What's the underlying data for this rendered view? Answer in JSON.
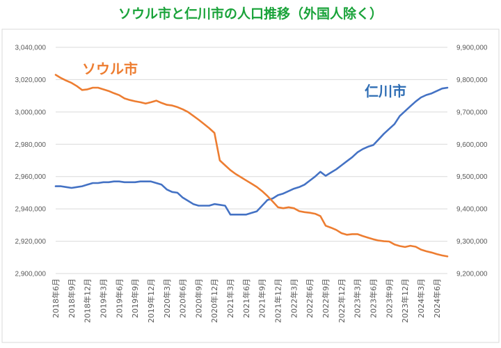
{
  "chart_data": {
    "type": "line",
    "title": "ソウル市と仁川市の人口推移（外国人除く）",
    "x": [
      "2018年6月",
      "2018年7月",
      "2018年8月",
      "2018年9月",
      "2018年10月",
      "2018年11月",
      "2018年12月",
      "2019年1月",
      "2019年2月",
      "2019年3月",
      "2019年4月",
      "2019年5月",
      "2019年6月",
      "2019年7月",
      "2019年8月",
      "2019年9月",
      "2019年10月",
      "2019年11月",
      "2019年12月",
      "2020年1月",
      "2020年2月",
      "2020年3月",
      "2020年4月",
      "2020年5月",
      "2020年6月",
      "2020年7月",
      "2020年8月",
      "2020年9月",
      "2020年10月",
      "2020年11月",
      "2020年12月",
      "2021年1月",
      "2021年2月",
      "2021年3月",
      "2021年4月",
      "2021年5月",
      "2021年6月",
      "2021年7月",
      "2021年8月",
      "2021年9月",
      "2021年10月",
      "2021年11月",
      "2021年12月",
      "2022年1月",
      "2022年2月",
      "2022年3月",
      "2022年4月",
      "2022年5月",
      "2022年6月",
      "2022年7月",
      "2022年8月",
      "2022年9月",
      "2022年10月",
      "2022年11月",
      "2022年12月",
      "2023年1月",
      "2023年2月",
      "2023年3月",
      "2023年4月",
      "2023年5月",
      "2023年6月",
      "2023年7月",
      "2023年8月",
      "2023年9月",
      "2023年10月",
      "2023年11月",
      "2023年12月",
      "2024年1月",
      "2024年2月",
      "2024年3月",
      "2024年4月",
      "2024年5月",
      "2024年6月",
      "2024年7月",
      "2024年8月"
    ],
    "x_tick_labels": [
      "2018年6月",
      "2018年9月",
      "2018年12月",
      "2019年3月",
      "2019年6月",
      "2019年9月",
      "2019年12月",
      "2020年3月",
      "2020年6月",
      "2020年9月",
      "2020年12月",
      "2021年3月",
      "2021年6月",
      "2021年9月",
      "2021年12月",
      "2022年3月",
      "2022年6月",
      "2022年9月",
      "2022年12月",
      "2023年3月",
      "2023年6月",
      "2023年9月",
      "2023年12月",
      "2024年3月",
      "2024年6月"
    ],
    "y_left": {
      "ylim": [
        2900000,
        3040000
      ],
      "ticks": [
        "2,900,000",
        "2,920,000",
        "2,940,000",
        "2,960,000",
        "2,980,000",
        "3,000,000",
        "3,020,000",
        "3,040,000"
      ]
    },
    "y_right": {
      "ylim": [
        9200000,
        9900000
      ],
      "ticks": [
        "9,200,000",
        "9,300,000",
        "9,400,000",
        "9,500,000",
        "9,600,000",
        "9,700,000",
        "9,800,000",
        "9,900,000"
      ]
    },
    "grid": true,
    "series": [
      {
        "name": "仁川市",
        "axis": "left",
        "color": "#4472c4",
        "label_color": "#2e6db4",
        "values": [
          2954000,
          2954000,
          2953500,
          2953000,
          2953500,
          2954000,
          2955000,
          2956000,
          2956000,
          2956500,
          2956500,
          2957000,
          2957000,
          2956500,
          2956500,
          2956500,
          2957000,
          2957000,
          2957000,
          2956000,
          2955000,
          2952000,
          2950500,
          2950000,
          2947000,
          2945000,
          2943000,
          2942000,
          2942000,
          2942000,
          2943000,
          2942500,
          2942000,
          2936500,
          2936500,
          2936500,
          2936500,
          2937500,
          2938500,
          2942000,
          2945500,
          2946500,
          2948500,
          2949500,
          2951000,
          2952500,
          2953500,
          2955000,
          2957500,
          2960000,
          2963000,
          2960500,
          2962500,
          2964500,
          2967000,
          2969500,
          2972000,
          2975000,
          2977000,
          2978500,
          2979500,
          2983000,
          2986500,
          2989500,
          2992500,
          2997500,
          3000500,
          3003500,
          3006500,
          3009000,
          3010500,
          3011500,
          3013000,
          3014500,
          3015000
        ]
      },
      {
        "name": "ソウル市",
        "axis": "right",
        "color": "#ed7d31",
        "label_color": "#ed7d31",
        "values": [
          9815000,
          9805000,
          9797000,
          9790000,
          9780000,
          9768000,
          9770000,
          9775000,
          9775000,
          9770000,
          9765000,
          9758000,
          9752000,
          9742000,
          9737000,
          9733000,
          9730000,
          9726000,
          9730000,
          9735000,
          9728000,
          9722000,
          9720000,
          9715000,
          9708000,
          9700000,
          9688000,
          9676000,
          9663000,
          9650000,
          9635000,
          9550000,
          9535000,
          9520000,
          9508000,
          9498000,
          9488000,
          9478000,
          9468000,
          9455000,
          9440000,
          9423000,
          9405000,
          9402000,
          9405000,
          9402000,
          9393000,
          9390000,
          9388000,
          9385000,
          9378000,
          9348000,
          9342000,
          9335000,
          9325000,
          9320000,
          9322000,
          9322000,
          9316000,
          9311000,
          9306000,
          9302000,
          9300000,
          9299000,
          9290000,
          9285000,
          9282000,
          9286000,
          9283000,
          9274000,
          9269000,
          9265000,
          9260000,
          9256000,
          9253000
        ]
      }
    ]
  }
}
